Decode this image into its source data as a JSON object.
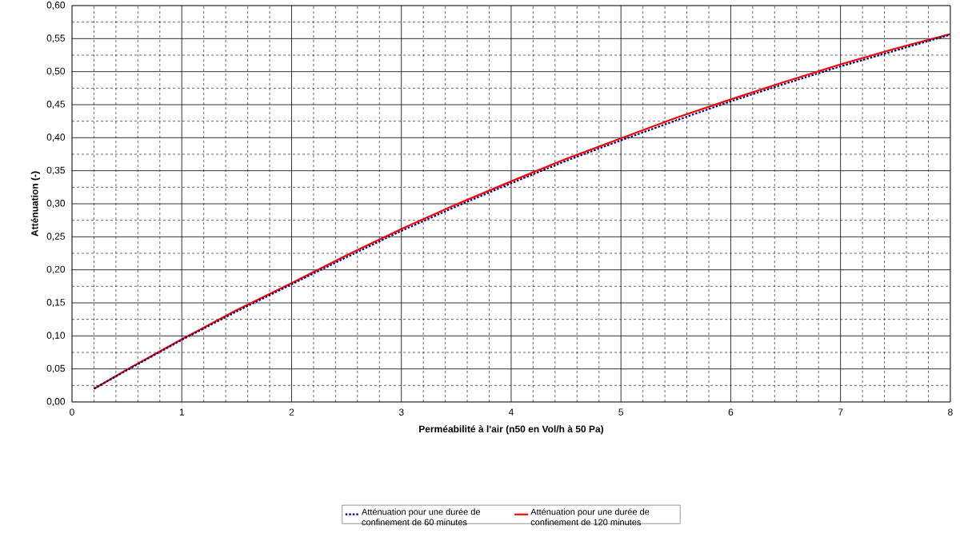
{
  "chart_data": {
    "type": "line",
    "xlabel": "Perméabilité à l'air (n50 en Vol/h à 50 Pa)",
    "ylabel": "Atténuation (-)",
    "x": [
      0.2,
      0.5,
      1,
      1.5,
      2,
      2.5,
      3,
      3.5,
      4,
      4.5,
      5,
      5.5,
      6,
      6.5,
      7,
      7.5,
      8
    ],
    "series": [
      {
        "name": "Atténuation pour une durée de confinement de 60 minutes",
        "color": "#000080",
        "line_style": "dotted",
        "values": [
          0.02,
          0.048,
          0.094,
          0.137,
          0.178,
          0.219,
          0.259,
          0.296,
          0.331,
          0.365,
          0.396,
          0.426,
          0.455,
          0.482,
          0.508,
          0.532,
          0.556
        ]
      },
      {
        "name": "Atténuation pour une durée de confinement de 120 minutes",
        "color": "#ff0000",
        "line_style": "solid",
        "values": [
          0.02,
          0.049,
          0.095,
          0.139,
          0.18,
          0.222,
          0.262,
          0.299,
          0.334,
          0.368,
          0.399,
          0.43,
          0.458,
          0.485,
          0.511,
          0.535,
          0.557
        ]
      }
    ],
    "xlim": [
      0,
      8
    ],
    "xticks": [
      0,
      1,
      2,
      3,
      4,
      5,
      6,
      7,
      8
    ],
    "ylim": [
      0,
      0.6
    ],
    "yticks": [
      {
        "value": 0,
        "label": "0,00"
      },
      {
        "value": 0.05,
        "label": "0,05"
      },
      {
        "value": 0.1,
        "label": "0,10"
      },
      {
        "value": 0.15,
        "label": "0,15"
      },
      {
        "value": 0.2,
        "label": "0,20"
      },
      {
        "value": 0.25,
        "label": "0,25"
      },
      {
        "value": 0.3,
        "label": "0,30"
      },
      {
        "value": 0.35,
        "label": "0,35"
      },
      {
        "value": 0.4,
        "label": "0,40"
      },
      {
        "value": 0.45,
        "label": "0,45"
      },
      {
        "value": 0.5,
        "label": "0,50"
      },
      {
        "value": 0.55,
        "label": "0,55"
      },
      {
        "value": 0.6,
        "label": "0,60"
      }
    ],
    "grid": true,
    "legend": "bottom"
  }
}
